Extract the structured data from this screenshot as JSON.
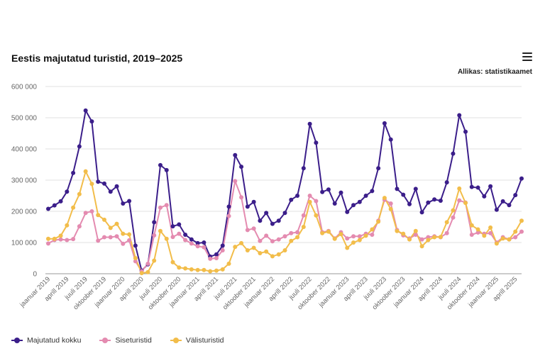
{
  "header": {
    "title": "Eestis majutatud turistid, 2019–2025",
    "source": "Allikas: statistikaamet"
  },
  "chart_data": {
    "type": "line",
    "title": "Eestis majutatud turistid, 2019–2025",
    "xlabel": "",
    "ylabel": "",
    "ylim": [
      0,
      600000
    ],
    "yticks": [
      0,
      100000,
      200000,
      300000,
      400000,
      500000,
      600000
    ],
    "ytick_labels": [
      "0",
      "100 000",
      "200 000",
      "300 000",
      "400 000",
      "500 000",
      "600 000"
    ],
    "x_tick_labels": [
      "jaanuar 2019",
      "aprill 2019",
      "juuli 2019",
      "oktoober 2019",
      "jaanuar 2020",
      "aprill 2020",
      "juuli 2020",
      "oktoober 2020",
      "jaanuar 2021",
      "aprill 2021",
      "juuli 2021",
      "oktoober 2021",
      "jaanuar 2022",
      "aprill 2022",
      "juuli 2022",
      "oktoober 2022",
      "jaanuar 2023",
      "aprill 2023",
      "juuli 2023",
      "oktoober 2023",
      "jaanuar 2024",
      "aprill 2024",
      "juuli 2024",
      "oktoober 2024",
      "jaanuar 2025",
      "aprill 2025"
    ],
    "grid": true,
    "legend_position": "bottom-left",
    "x_start": "2019-01",
    "x_end": "2025-05",
    "series": [
      {
        "name": "Majutatud kokku",
        "color": "#3b1e8a",
        "values": [
          208000,
          219000,
          232000,
          263000,
          323000,
          408000,
          523000,
          488000,
          295000,
          289000,
          263000,
          280000,
          225000,
          233000,
          90000,
          10000,
          30000,
          165000,
          348000,
          332000,
          152000,
          158000,
          125000,
          110000,
          98000,
          100000,
          55000,
          62000,
          90000,
          215000,
          380000,
          343000,
          215000,
          230000,
          170000,
          195000,
          160000,
          170000,
          195000,
          237000,
          250000,
          338000,
          480000,
          420000,
          262000,
          270000,
          225000,
          260000,
          198000,
          220000,
          230000,
          250000,
          265000,
          338000,
          482000,
          430000,
          272000,
          253000,
          223000,
          272000,
          197000,
          228000,
          238000,
          234000,
          293000,
          385000,
          508000,
          455000,
          278000,
          276000,
          248000,
          280000,
          205000,
          232000,
          220000,
          252000,
          305000
        ]
      },
      {
        "name": "Siseturistid",
        "color": "#e48bb0",
        "values": [
          97000,
          108000,
          110000,
          108000,
          111000,
          152000,
          195000,
          200000,
          106000,
          117000,
          117000,
          120000,
          96000,
          107000,
          40000,
          8000,
          32000,
          123000,
          212000,
          220000,
          118000,
          128000,
          108000,
          97000,
          88000,
          85000,
          48000,
          50000,
          75000,
          185000,
          297000,
          245000,
          140000,
          145000,
          105000,
          122000,
          104000,
          110000,
          120000,
          130000,
          133000,
          187000,
          250000,
          233000,
          133000,
          137000,
          113000,
          133000,
          113000,
          120000,
          120000,
          128000,
          125000,
          170000,
          237000,
          225000,
          140000,
          123000,
          113000,
          125000,
          110000,
          117000,
          120000,
          117000,
          130000,
          180000,
          235000,
          228000,
          125000,
          132000,
          128000,
          130000,
          100000,
          117000,
          110000,
          117000,
          135000
        ]
      },
      {
        "name": "Välisturistid",
        "color": "#f2bd4a",
        "values": [
          112000,
          112000,
          122000,
          155000,
          212000,
          255000,
          328000,
          288000,
          188000,
          173000,
          147000,
          160000,
          128000,
          126000,
          50000,
          2000,
          5000,
          42000,
          137000,
          112000,
          37000,
          20000,
          17000,
          14000,
          12000,
          12000,
          8000,
          10000,
          14000,
          32000,
          86000,
          98000,
          75000,
          83000,
          66000,
          71000,
          56000,
          62000,
          75000,
          105000,
          117000,
          150000,
          230000,
          187000,
          130000,
          135000,
          112000,
          127000,
          83000,
          100000,
          108000,
          122000,
          142000,
          167000,
          243000,
          207000,
          137000,
          128000,
          110000,
          137000,
          88000,
          108000,
          117000,
          118000,
          165000,
          203000,
          273000,
          227000,
          155000,
          142000,
          122000,
          148000,
          97000,
          113000,
          110000,
          135000,
          170000
        ]
      }
    ]
  }
}
